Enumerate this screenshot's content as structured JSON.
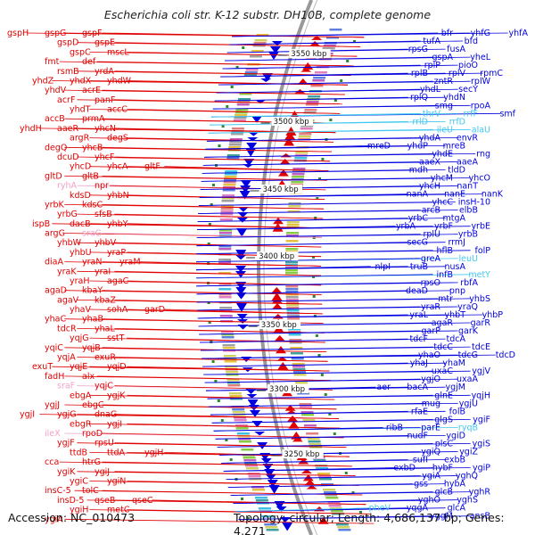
{
  "title": "Escherichia coli str. K-12 substr. DH10B, complete genome",
  "accession": "Accession: NC_010473",
  "topology": "Topology: circular; Length: 4,686,137 bp; Genes: 4,271",
  "colors": {
    "forward": "#e00000",
    "reverse": "#0000e0",
    "rna_forward": "#f0a0c8",
    "rna_reverse": "#40c8f0",
    "backbone": "#999999"
  },
  "position_labels": [
    "3550 kbp",
    "3500 kbp",
    "3450 kbp",
    "3400 kbp",
    "3350 kbp",
    "3300 kbp",
    "3250 kbp"
  ],
  "left_labels": [
    {
      "text": "gspH",
      "c": "f"
    },
    {
      "text": "gspG",
      "c": "f"
    },
    {
      "text": "gspF",
      "c": "f"
    },
    {
      "text": "gspD",
      "c": "f"
    },
    {
      "text": "gspE",
      "c": "f"
    },
    {
      "text": "gspC",
      "c": "f"
    },
    {
      "text": "mscL",
      "c": "f"
    },
    {
      "text": "fmt",
      "c": "f"
    },
    {
      "text": "def",
      "c": "f"
    },
    {
      "text": "rsmB",
      "c": "f"
    },
    {
      "text": "yrdA",
      "c": "f"
    },
    {
      "text": "yhdZ",
      "c": "f"
    },
    {
      "text": "yhdX",
      "c": "f"
    },
    {
      "text": "yhdW",
      "c": "f"
    },
    {
      "text": "yhdV",
      "c": "f"
    },
    {
      "text": "acrE",
      "c": "f"
    },
    {
      "text": "acrF",
      "c": "f"
    },
    {
      "text": "panF",
      "c": "f"
    },
    {
      "text": "yhdT",
      "c": "f"
    },
    {
      "text": "accC",
      "c": "f"
    },
    {
      "text": "accB",
      "c": "f"
    },
    {
      "text": "prmA",
      "c": "f"
    },
    {
      "text": "yhdH",
      "c": "f"
    },
    {
      "text": "aaeR",
      "c": "f"
    },
    {
      "text": "yhcN",
      "c": "f"
    },
    {
      "text": "argR",
      "c": "f"
    },
    {
      "text": "degS",
      "c": "f"
    },
    {
      "text": "degQ",
      "c": "f"
    },
    {
      "text": "yhcB",
      "c": "f"
    },
    {
      "text": "dcuD",
      "c": "f"
    },
    {
      "text": "yhcF",
      "c": "f"
    },
    {
      "text": "yhcD",
      "c": "f"
    },
    {
      "text": "yhcA",
      "c": "f"
    },
    {
      "text": "gltF",
      "c": "f"
    },
    {
      "text": "gltD",
      "c": "f"
    },
    {
      "text": "gltB",
      "c": "f"
    },
    {
      "text": "ryhA",
      "c": "r"
    },
    {
      "text": "npr",
      "c": "f"
    },
    {
      "text": "kdsD",
      "c": "f"
    },
    {
      "text": "yhbN",
      "c": "f"
    },
    {
      "text": "yrbK",
      "c": "f"
    },
    {
      "text": "kdsC",
      "c": "f"
    },
    {
      "text": "yrbG",
      "c": "f"
    },
    {
      "text": "sfsB",
      "c": "f"
    },
    {
      "text": "ispB",
      "c": "f"
    },
    {
      "text": "dacB",
      "c": "f"
    },
    {
      "text": "yhbY",
      "c": "f"
    },
    {
      "text": "argG",
      "c": "f"
    },
    {
      "text": "sraG",
      "c": "r"
    },
    {
      "text": "yhbW",
      "c": "f"
    },
    {
      "text": "yhbV",
      "c": "f"
    },
    {
      "text": "yhbU",
      "c": "f"
    },
    {
      "text": "yraP",
      "c": "f"
    },
    {
      "text": "diaA",
      "c": "f"
    },
    {
      "text": "yraN",
      "c": "f"
    },
    {
      "text": "yraM",
      "c": "f"
    },
    {
      "text": "yraK",
      "c": "f"
    },
    {
      "text": "yraI",
      "c": "f"
    },
    {
      "text": "yraH",
      "c": "f"
    },
    {
      "text": "agaC",
      "c": "f"
    },
    {
      "text": "agaD",
      "c": "f"
    },
    {
      "text": "kbaY",
      "c": "f"
    },
    {
      "text": "agaV",
      "c": "f"
    },
    {
      "text": "kbaZ",
      "c": "f"
    },
    {
      "text": "yhaV",
      "c": "f"
    },
    {
      "text": "sohA",
      "c": "f"
    },
    {
      "text": "garD",
      "c": "f"
    },
    {
      "text": "yhaC",
      "c": "f"
    },
    {
      "text": "yhaB",
      "c": "f"
    },
    {
      "text": "tdcR",
      "c": "f"
    },
    {
      "text": "yhaL",
      "c": "f"
    },
    {
      "text": "yqjG",
      "c": "f"
    },
    {
      "text": "sstT",
      "c": "f"
    },
    {
      "text": "yqiC",
      "c": "f"
    },
    {
      "text": "yqjB",
      "c": "f"
    },
    {
      "text": "yqjA",
      "c": "f"
    },
    {
      "text": "exuR",
      "c": "f"
    },
    {
      "text": "exuT",
      "c": "f"
    },
    {
      "text": "yqjE",
      "c": "f"
    },
    {
      "text": "yqjD",
      "c": "f"
    },
    {
      "text": "fadH",
      "c": "f"
    },
    {
      "text": "alx",
      "c": "f"
    },
    {
      "text": "sraF",
      "c": "r"
    },
    {
      "text": "yqjC",
      "c": "f"
    },
    {
      "text": "ebgA",
      "c": "f"
    },
    {
      "text": "ygjK",
      "c": "f"
    },
    {
      "text": "ygjJ",
      "c": "f"
    },
    {
      "text": "ebgC",
      "c": "f"
    },
    {
      "text": "ygjI",
      "c": "f"
    },
    {
      "text": "ygjG",
      "c": "f"
    },
    {
      "text": "dnaG",
      "c": "f"
    },
    {
      "text": "ebgR",
      "c": "f"
    },
    {
      "text": "ygjI",
      "c": "f"
    },
    {
      "text": "ileX",
      "c": "r"
    },
    {
      "text": "rpoD",
      "c": "f"
    },
    {
      "text": "ygjF",
      "c": "f"
    },
    {
      "text": "rpsU",
      "c": "f"
    },
    {
      "text": "ttdB",
      "c": "f"
    },
    {
      "text": "ttdA",
      "c": "f"
    },
    {
      "text": "ygjH",
      "c": "f"
    },
    {
      "text": "cca",
      "c": "f"
    },
    {
      "text": "htrG",
      "c": "f"
    },
    {
      "text": "ygiK",
      "c": "f"
    },
    {
      "text": "ygiJ",
      "c": "f"
    },
    {
      "text": "ygiC",
      "c": "f"
    },
    {
      "text": "ygiN",
      "c": "f"
    },
    {
      "text": "insC-5",
      "c": "f"
    },
    {
      "text": "tolC",
      "c": "f"
    },
    {
      "text": "insD-5",
      "c": "f"
    },
    {
      "text": "qseB",
      "c": "f"
    },
    {
      "text": "qseC",
      "c": "f"
    },
    {
      "text": "ygiH",
      "c": "f"
    },
    {
      "text": "metC",
      "c": "f"
    },
    {
      "text": "ygiA",
      "c": "f"
    }
  ],
  "right_labels": [
    {
      "text": "yhfA",
      "c": "b"
    },
    {
      "text": "yhfG",
      "c": "b"
    },
    {
      "text": "bfr",
      "c": "b"
    },
    {
      "text": "bfd",
      "c": "b"
    },
    {
      "text": "tufA",
      "c": "b"
    },
    {
      "text": "fusA",
      "c": "b"
    },
    {
      "text": "rpsG",
      "c": "b"
    },
    {
      "text": "yheL",
      "c": "b"
    },
    {
      "text": "gspA",
      "c": "b"
    },
    {
      "text": "pioO",
      "c": "b"
    },
    {
      "text": "rplP",
      "c": "b"
    },
    {
      "text": "rpmC",
      "c": "b"
    },
    {
      "text": "rplV",
      "c": "b"
    },
    {
      "text": "rplB",
      "c": "b"
    },
    {
      "text": "rplW",
      "c": "b"
    },
    {
      "text": "zntR",
      "c": "b"
    },
    {
      "text": "secY",
      "c": "b"
    },
    {
      "text": "yhdL",
      "c": "b"
    },
    {
      "text": "yhdN",
      "c": "b"
    },
    {
      "text": "rplQ",
      "c": "b"
    },
    {
      "text": "rpoA",
      "c": "b"
    },
    {
      "text": "smg",
      "c": "b"
    },
    {
      "text": "smf",
      "c": "b"
    },
    {
      "text": "rrfF",
      "c": "c"
    },
    {
      "text": "thrV",
      "c": "c"
    },
    {
      "text": "rrfD",
      "c": "c"
    },
    {
      "text": "rrlD",
      "c": "c"
    },
    {
      "text": "alaU",
      "c": "c"
    },
    {
      "text": "ileU",
      "c": "c"
    },
    {
      "text": "envR",
      "c": "b"
    },
    {
      "text": "yhdA",
      "c": "b"
    },
    {
      "text": "mreB",
      "c": "b"
    },
    {
      "text": "yhdP",
      "c": "b"
    },
    {
      "text": "mreD",
      "c": "b"
    },
    {
      "text": "rng",
      "c": "b"
    },
    {
      "text": "yhdE",
      "c": "b"
    },
    {
      "text": "aaeA",
      "c": "b"
    },
    {
      "text": "aaeX",
      "c": "b"
    },
    {
      "text": "tldD",
      "c": "b"
    },
    {
      "text": "mdh",
      "c": "b"
    },
    {
      "text": "yhcO",
      "c": "b"
    },
    {
      "text": "yhcM",
      "c": "b"
    },
    {
      "text": "nanT",
      "c": "b"
    },
    {
      "text": "yhcH",
      "c": "b"
    },
    {
      "text": "nanK",
      "c": "b"
    },
    {
      "text": "nanE",
      "c": "b"
    },
    {
      "text": "nanA",
      "c": "b"
    },
    {
      "text": "insH-10",
      "c": "b"
    },
    {
      "text": "yhcC",
      "c": "b"
    },
    {
      "text": "elbB",
      "c": "b"
    },
    {
      "text": "arcB",
      "c": "b"
    },
    {
      "text": "mtgA",
      "c": "b"
    },
    {
      "text": "yrbC",
      "c": "b"
    },
    {
      "text": "yrbE",
      "c": "b"
    },
    {
      "text": "yrbF",
      "c": "b"
    },
    {
      "text": "yrbA",
      "c": "b"
    },
    {
      "text": "yrbB",
      "c": "b"
    },
    {
      "text": "rplU",
      "c": "b"
    },
    {
      "text": "rrmJ",
      "c": "b"
    },
    {
      "text": "secG",
      "c": "b"
    },
    {
      "text": "folP",
      "c": "b"
    },
    {
      "text": "hflB",
      "c": "b"
    },
    {
      "text": "leuU",
      "c": "c"
    },
    {
      "text": "greA",
      "c": "b"
    },
    {
      "text": "nusA",
      "c": "b"
    },
    {
      "text": "truB",
      "c": "b"
    },
    {
      "text": "nlpI",
      "c": "b"
    },
    {
      "text": "metY",
      "c": "c"
    },
    {
      "text": "infB",
      "c": "b"
    },
    {
      "text": "rbfA",
      "c": "b"
    },
    {
      "text": "rpsO",
      "c": "b"
    },
    {
      "text": "pnp",
      "c": "b"
    },
    {
      "text": "deaD",
      "c": "b"
    },
    {
      "text": "yhbS",
      "c": "b"
    },
    {
      "text": "mtr",
      "c": "b"
    },
    {
      "text": "yraQ",
      "c": "b"
    },
    {
      "text": "yraR",
      "c": "b"
    },
    {
      "text": "yhbP",
      "c": "b"
    },
    {
      "text": "yhbT",
      "c": "b"
    },
    {
      "text": "yraL",
      "c": "b"
    },
    {
      "text": "garR",
      "c": "b"
    },
    {
      "text": "agaR",
      "c": "b"
    },
    {
      "text": "garK",
      "c": "b"
    },
    {
      "text": "garP",
      "c": "b"
    },
    {
      "text": "tdcA",
      "c": "b"
    },
    {
      "text": "tdcF",
      "c": "b"
    },
    {
      "text": "tdcE",
      "c": "b"
    },
    {
      "text": "tdcC",
      "c": "b"
    },
    {
      "text": "tdcD",
      "c": "b"
    },
    {
      "text": "tdcG",
      "c": "b"
    },
    {
      "text": "yhaO",
      "c": "b"
    },
    {
      "text": "yhaM",
      "c": "b"
    },
    {
      "text": "yhaJ",
      "c": "b"
    },
    {
      "text": "ygjV",
      "c": "b"
    },
    {
      "text": "uxaC",
      "c": "b"
    },
    {
      "text": "uxaA",
      "c": "b"
    },
    {
      "text": "ygjO",
      "c": "b"
    },
    {
      "text": "ygjM",
      "c": "b"
    },
    {
      "text": "bacA",
      "c": "b"
    },
    {
      "text": "aer",
      "c": "b"
    },
    {
      "text": "yqjH",
      "c": "b"
    },
    {
      "text": "glnE",
      "c": "b"
    },
    {
      "text": "ygjU",
      "c": "b"
    },
    {
      "text": "mug",
      "c": "b"
    },
    {
      "text": "folB",
      "c": "b"
    },
    {
      "text": "rfaE",
      "c": "b"
    },
    {
      "text": "ygiF",
      "c": "b"
    },
    {
      "text": "glgS",
      "c": "b"
    },
    {
      "text": "ryqB",
      "c": "c"
    },
    {
      "text": "parE",
      "c": "b"
    },
    {
      "text": "ribB",
      "c": "b"
    },
    {
      "text": "ygiD",
      "c": "b"
    },
    {
      "text": "nudF",
      "c": "b"
    },
    {
      "text": "ygiS",
      "c": "b"
    },
    {
      "text": "plsC",
      "c": "b"
    },
    {
      "text": "ygiZ",
      "c": "b"
    },
    {
      "text": "ygiQ",
      "c": "b"
    },
    {
      "text": "exbB",
      "c": "b"
    },
    {
      "text": "sufI",
      "c": "b"
    },
    {
      "text": "ygiP",
      "c": "b"
    },
    {
      "text": "hybF",
      "c": "b"
    },
    {
      "text": "exbD",
      "c": "b"
    },
    {
      "text": "yghQ",
      "c": "b"
    },
    {
      "text": "ygiA",
      "c": "b"
    },
    {
      "text": "hybA",
      "c": "b"
    },
    {
      "text": "gss",
      "c": "b"
    },
    {
      "text": "yghR",
      "c": "b"
    },
    {
      "text": "glcB",
      "c": "b"
    },
    {
      "text": "yghS",
      "c": "b"
    },
    {
      "text": "yghO",
      "c": "b"
    },
    {
      "text": "glcA",
      "c": "b"
    },
    {
      "text": "yqgA",
      "c": "b"
    },
    {
      "text": "pheV",
      "c": "c"
    },
    {
      "text": "ansB",
      "c": "b"
    },
    {
      "text": "yggM",
      "c": "b"
    }
  ]
}
